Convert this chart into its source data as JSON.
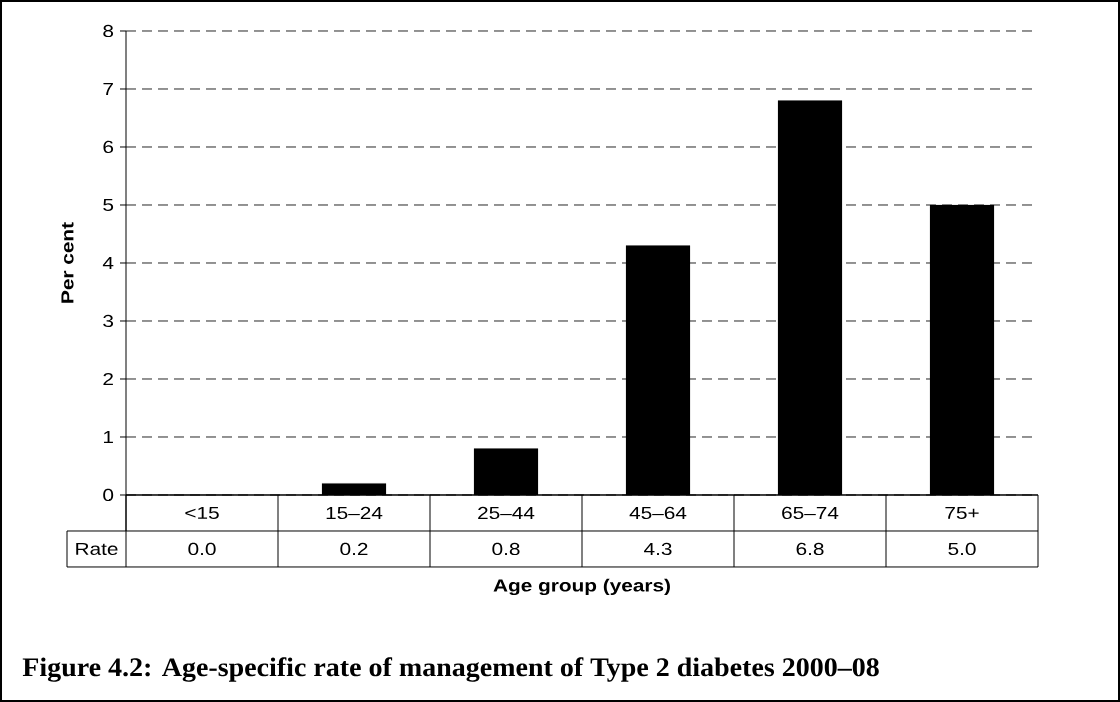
{
  "chart_data": {
    "type": "bar",
    "title": "Figure 4.2: Age-specific rate of management of Type 2 diabetes 2000–08",
    "xlabel": "Age group (years)",
    "ylabel": "Per cent",
    "categories": [
      "<15",
      "15–24",
      "25–44",
      "45–64",
      "65–74",
      "75+"
    ],
    "series": [
      {
        "name": "Rate",
        "color": "#000000",
        "values": [
          0.0,
          0.2,
          0.8,
          4.3,
          6.8,
          5.0
        ],
        "value_labels": [
          "0.0",
          "0.2",
          "0.8",
          "4.3",
          "6.8",
          "5.0"
        ]
      }
    ],
    "ylim": [
      0,
      8
    ],
    "yticks": [
      0,
      1,
      2,
      3,
      4,
      5,
      6,
      7,
      8
    ],
    "grid": "y"
  }
}
